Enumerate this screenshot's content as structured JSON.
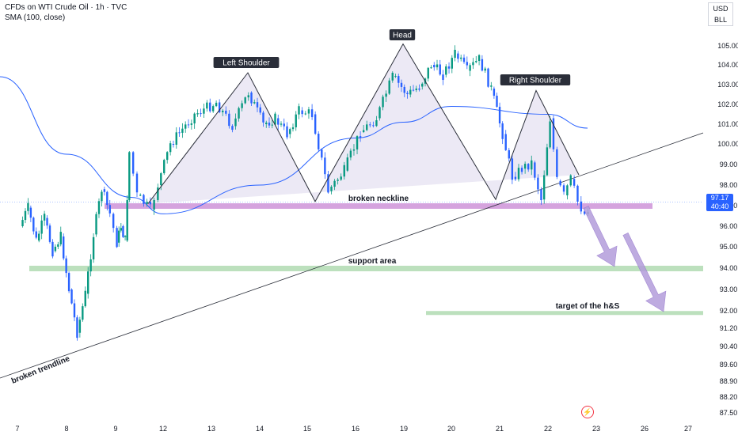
{
  "header": {
    "symbol": "CFDs on WTI Crude Oil · 1h · TVC",
    "indicator": "SMA (100, close)"
  },
  "currency": {
    "unit": "USD",
    "sub": "BLL"
  },
  "price_tag": {
    "price": "97.17",
    "countdown": "40:40"
  },
  "icons": {
    "events": "lightning-event-icon"
  },
  "colors": {
    "up": "#089981",
    "down": "#2962ff",
    "sma": "#2962ff",
    "neckline": "#ce93d8",
    "support": "#a5d6a7",
    "pattern_fill": "#e6e1f2",
    "arrow": "#b39ddb"
  },
  "chart_data": {
    "type": "candlestick",
    "title": "",
    "y_axis": {
      "ticks": [
        "105.00",
        "104.00",
        "103.00",
        "102.00",
        "101.00",
        "100.00",
        "99.00",
        "98.00",
        "97.00",
        "96.00",
        "95.00",
        "94.00",
        "93.00",
        "92.00",
        "91.20",
        "90.40",
        "89.60",
        "88.90",
        "88.20",
        "87.50"
      ],
      "scale": "log"
    },
    "x_axis": {
      "ticks": [
        "7",
        "8",
        "9",
        "12",
        "13",
        "14",
        "15",
        "16",
        "19",
        "20",
        "21",
        "22",
        "23",
        "26",
        "27"
      ]
    },
    "annotations": {
      "left_shoulder": "Left Shoulder",
      "head": "Head",
      "right_shoulder": "Right Shoulder",
      "broken_neckline": "broken neckline",
      "support_area": "support area",
      "target": "target of the h&S",
      "broken_trendline": "broken trendline"
    },
    "levels": {
      "neckline": 97.0,
      "support": 94.0,
      "target": 91.9
    },
    "pattern_points": [
      {
        "date": "11",
        "price": 97.1
      },
      {
        "date": "13",
        "price": 103.6
      },
      {
        "date": "15",
        "price": 97.2
      },
      {
        "date": "19",
        "price": 105.1
      },
      {
        "date": "21",
        "price": 97.3
      },
      {
        "date": "22",
        "price": 102.7
      },
      {
        "date": "22",
        "price": 98.5
      }
    ],
    "trendline": [
      {
        "date": "7",
        "price": 89.3
      },
      {
        "date": "27",
        "price": 100.2
      }
    ],
    "sma_path": [
      {
        "date": "6",
        "price": 103.4
      },
      {
        "date": "8",
        "price": 99.5
      },
      {
        "date": "10",
        "price": 97.4
      },
      {
        "date": "12",
        "price": 96.6
      },
      {
        "date": "14",
        "price": 98.0
      },
      {
        "date": "16",
        "price": 100.3
      },
      {
        "date": "19",
        "price": 101.1
      },
      {
        "date": "20",
        "price": 101.9
      },
      {
        "date": "22",
        "price": 101.5
      },
      {
        "date": "23",
        "price": 100.8
      }
    ],
    "close_path": [
      {
        "date": "7",
        "price": 96.0
      },
      {
        "date": "7",
        "price": 96.9
      },
      {
        "date": "7",
        "price": 95.3
      },
      {
        "date": "7",
        "price": 96.4
      },
      {
        "date": "7",
        "price": 94.8
      },
      {
        "date": "7",
        "price": 95.5
      },
      {
        "date": "8",
        "price": 93.0
      },
      {
        "date": "8",
        "price": 91.0
      },
      {
        "date": "8",
        "price": 92.8
      },
      {
        "date": "8",
        "price": 95.6
      },
      {
        "date": "8",
        "price": 97.8
      },
      {
        "date": "8",
        "price": 96.6
      },
      {
        "date": "9",
        "price": 95.2
      },
      {
        "date": "9",
        "price": 96.0
      },
      {
        "date": "9",
        "price": 95.3
      },
      {
        "date": "9",
        "price": 99.6
      },
      {
        "date": "10",
        "price": 97.5
      },
      {
        "date": "11",
        "price": 96.8
      },
      {
        "date": "11",
        "price": 98.0
      },
      {
        "date": "12",
        "price": 100.0
      },
      {
        "date": "12",
        "price": 101.5
      },
      {
        "date": "13",
        "price": 102.1
      },
      {
        "date": "13",
        "price": 100.9
      },
      {
        "date": "13",
        "price": 102.6
      },
      {
        "date": "14",
        "price": 101.0
      },
      {
        "date": "14",
        "price": 101.3
      },
      {
        "date": "14",
        "price": 100.5
      },
      {
        "date": "14",
        "price": 101.7
      },
      {
        "date": "15",
        "price": 101.5
      },
      {
        "date": "15",
        "price": 97.7
      },
      {
        "date": "15",
        "price": 98.7
      },
      {
        "date": "16",
        "price": 100.6
      },
      {
        "date": "16",
        "price": 101.3
      },
      {
        "date": "16",
        "price": 103.4
      },
      {
        "date": "19",
        "price": 102.5
      },
      {
        "date": "19",
        "price": 102.9
      },
      {
        "date": "19",
        "price": 104.0
      },
      {
        "date": "19",
        "price": 103.5
      },
      {
        "date": "20",
        "price": 104.6
      },
      {
        "date": "20",
        "price": 103.7
      },
      {
        "date": "20",
        "price": 104.3
      },
      {
        "date": "20",
        "price": 102.8
      },
      {
        "date": "21",
        "price": 100.5
      },
      {
        "date": "21",
        "price": 98.4
      },
      {
        "date": "21",
        "price": 98.8
      },
      {
        "date": "21",
        "price": 99.1
      },
      {
        "date": "21",
        "price": 97.3
      },
      {
        "date": "22",
        "price": 101.3
      },
      {
        "date": "22",
        "price": 98.2
      },
      {
        "date": "22",
        "price": 97.5
      },
      {
        "date": "22",
        "price": 98.3
      },
      {
        "date": "22",
        "price": 97.2
      },
      {
        "date": "22",
        "price": 96.6
      },
      {
        "date": "22",
        "price": 97.2
      }
    ]
  }
}
